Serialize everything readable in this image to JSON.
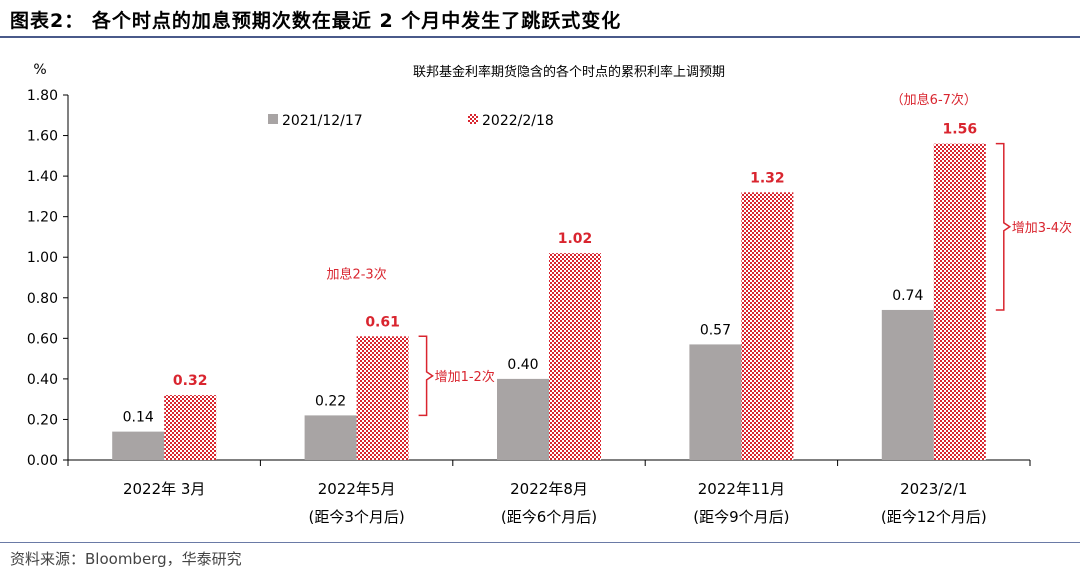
{
  "header": {
    "title": "图表2：  各个时点的加息预期次数在最近 2 个月中发生了跳跃式变化"
  },
  "footer": {
    "source": "资料来源：Bloomberg，华泰研究"
  },
  "colors": {
    "series1": "#a8a4a4",
    "series2": "#d9252f",
    "annotation": "#d9252f",
    "axis": "#000000"
  },
  "chart_data": {
    "type": "bar",
    "title": "联邦基金利率期货隐含的各个时点的累积利率上调预期",
    "ylabel": "%",
    "ylim": [
      0,
      1.8
    ],
    "yticks": [
      "0.00",
      "0.20",
      "0.40",
      "0.60",
      "0.80",
      "1.00",
      "1.20",
      "1.40",
      "1.60",
      "1.80"
    ],
    "categories": [
      {
        "line1": "2022年 3月",
        "line2": ""
      },
      {
        "line1": "2022年5月",
        "line2": "(距今3个月后)"
      },
      {
        "line1": "2022年8月",
        "line2": "(距今6个月后)"
      },
      {
        "line1": "2022年11月",
        "line2": "(距今9个月后)"
      },
      {
        "line1": "2023/2/1",
        "line2": "(距今12个月后)"
      }
    ],
    "series": [
      {
        "name": "2021/12/17",
        "values": [
          0.14,
          0.22,
          0.4,
          0.57,
          0.74
        ],
        "labels": [
          "0.14",
          "0.22",
          "0.40",
          "0.57",
          "0.74"
        ]
      },
      {
        "name": "2022/2/18",
        "values": [
          0.32,
          0.61,
          1.02,
          1.32,
          1.56
        ],
        "labels": [
          "0.32",
          "0.61",
          "1.02",
          "1.32",
          "1.56"
        ]
      }
    ],
    "legend_position": "top-left",
    "grid": false,
    "annotations": [
      {
        "text": "增加1-2次",
        "category": 1,
        "from": 0.61,
        "to": 0.22
      },
      {
        "text": "加息2-3次",
        "category": 1,
        "near": 0.92
      },
      {
        "text": "增加3-4次",
        "category": 4,
        "from": 1.56,
        "to": 0.74
      },
      {
        "text": "（加息6-7次）",
        "category": 4,
        "near": 1.78
      }
    ]
  }
}
